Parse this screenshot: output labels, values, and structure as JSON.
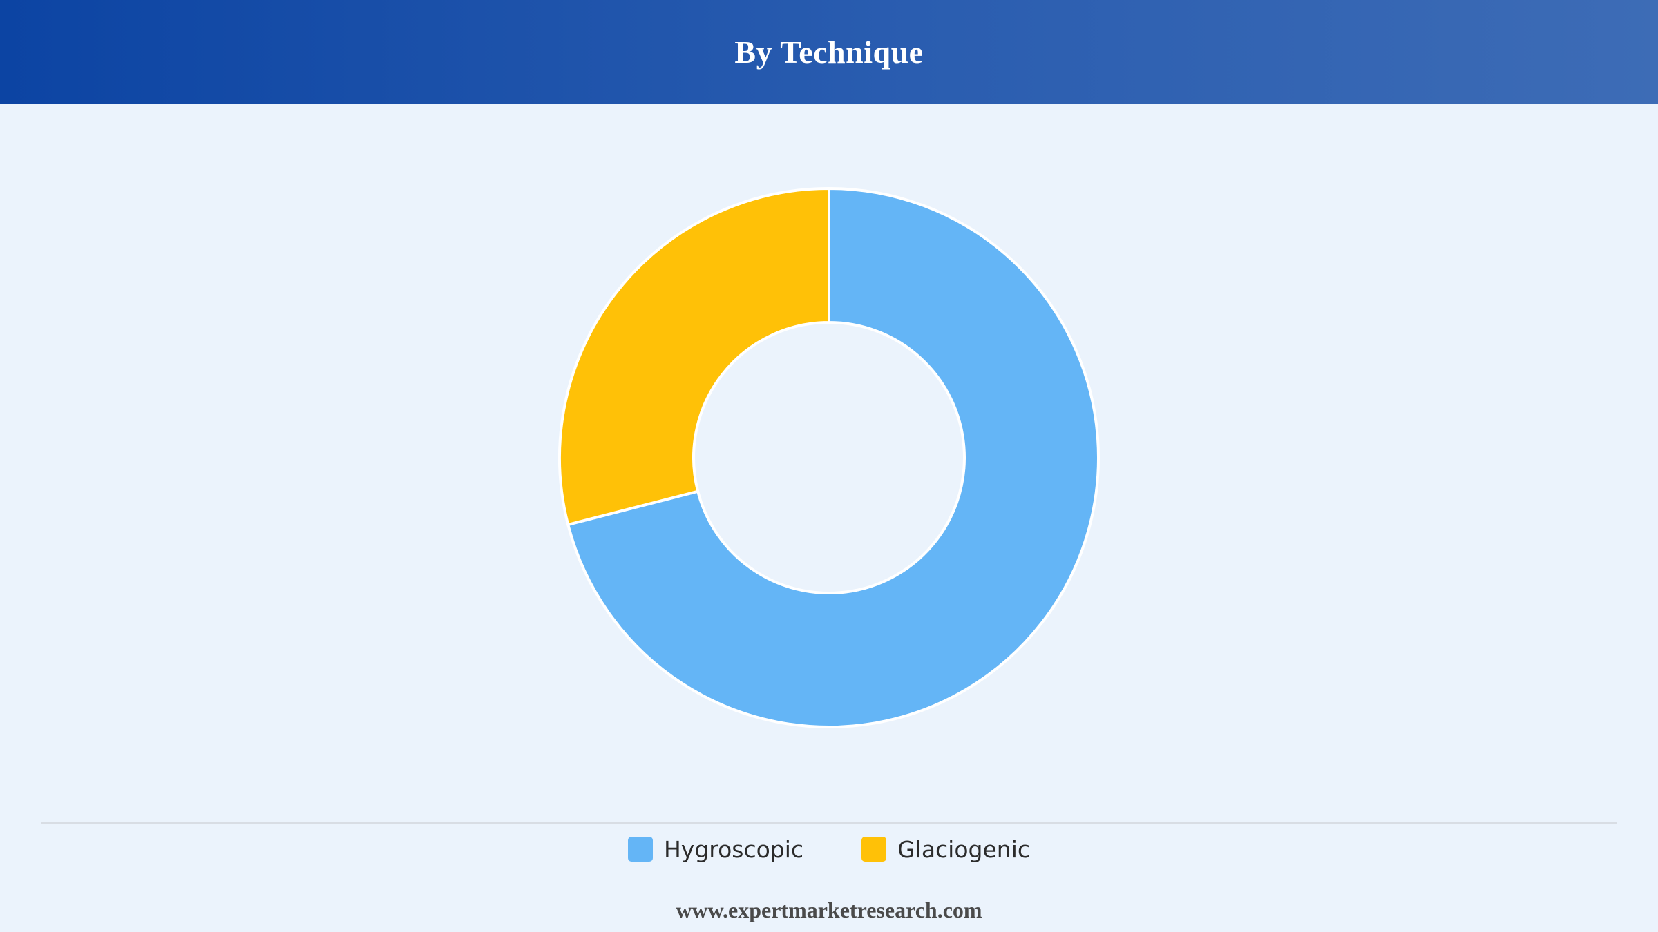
{
  "header": {
    "title": "By Technique"
  },
  "chart_data": {
    "type": "pie",
    "variant": "donut",
    "title": "By Technique",
    "categories": [
      "Hygroscopic",
      "Glaciogenic"
    ],
    "values": [
      71,
      29
    ],
    "unit": "%",
    "colors": [
      "#64b5f6",
      "#ffc107"
    ],
    "legend_placement": "bottom",
    "grid": false
  },
  "legend": {
    "items": [
      {
        "label": "Hygroscopic",
        "color": "#64b5f6"
      },
      {
        "label": "Glaciogenic",
        "color": "#ffc107"
      }
    ]
  },
  "footer": {
    "source": "www.expertmarketresearch.com"
  }
}
